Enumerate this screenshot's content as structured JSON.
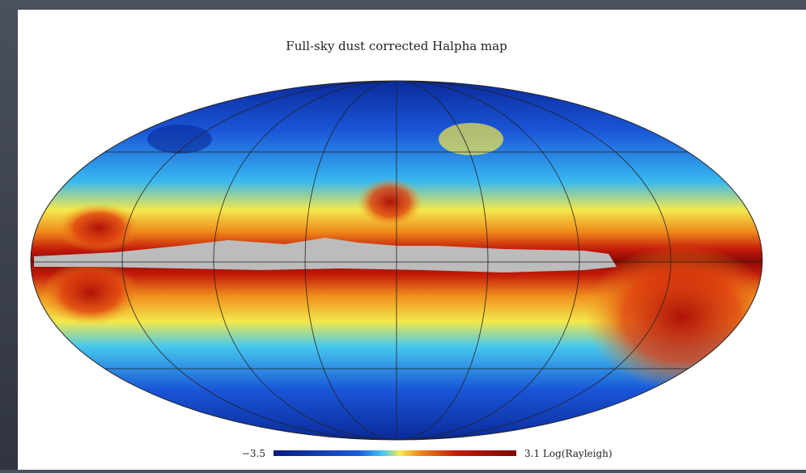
{
  "title": "Full-sky dust corrected Halpha map",
  "colorbar": {
    "min_label": "−3.5",
    "max_label": "3.1 Log(Rayleigh)"
  }
}
